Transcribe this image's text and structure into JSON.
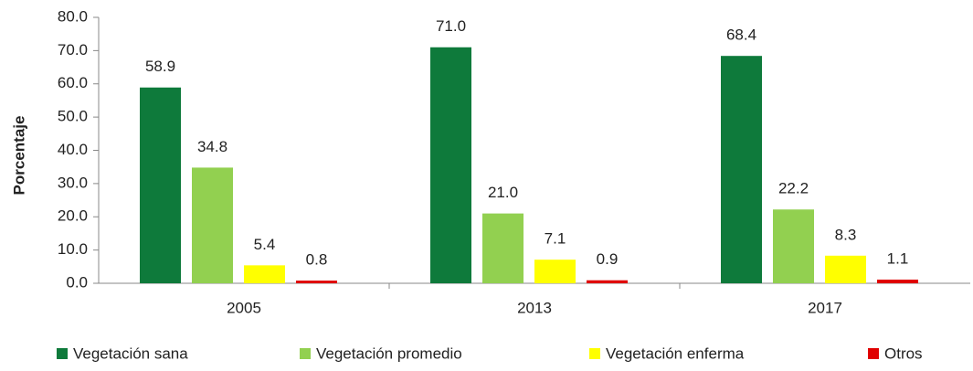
{
  "chart_data": {
    "type": "bar",
    "y_label": "Porcentaje",
    "categories": [
      "2005",
      "2013",
      "2017"
    ],
    "series": [
      {
        "name": "Vegetación sana",
        "color": "#0e7a3b",
        "values": [
          58.9,
          71.0,
          68.4
        ],
        "value_labels": [
          "58.9",
          "71.0",
          "68.4"
        ]
      },
      {
        "name": "Vegetación promedio",
        "color": "#92d050",
        "values": [
          34.8,
          21.0,
          22.2
        ],
        "value_labels": [
          "34.8",
          "21.0",
          "22.2"
        ]
      },
      {
        "name": "Vegetación enferma",
        "color": "#ffff00",
        "values": [
          5.4,
          7.1,
          8.3
        ],
        "value_labels": [
          "5.4",
          "7.1",
          "8.3"
        ]
      },
      {
        "name": "Otros",
        "color": "#e00000",
        "values": [
          0.8,
          0.9,
          1.1
        ],
        "value_labels": [
          "0.8",
          "0.9",
          "1.1"
        ]
      }
    ],
    "ylim": [
      0,
      80
    ],
    "yticks": [
      {
        "value": 0,
        "label": "0.0"
      },
      {
        "value": 10,
        "label": "10.0"
      },
      {
        "value": 20,
        "label": "20.0"
      },
      {
        "value": 30,
        "label": "30.0"
      },
      {
        "value": 40,
        "label": "40.0"
      },
      {
        "value": 50,
        "label": "50.0"
      },
      {
        "value": 60,
        "label": "60.0"
      },
      {
        "value": 70,
        "label": "70.0"
      },
      {
        "value": 80,
        "label": "80.0"
      }
    ],
    "grid": false,
    "legend": "bottom"
  }
}
